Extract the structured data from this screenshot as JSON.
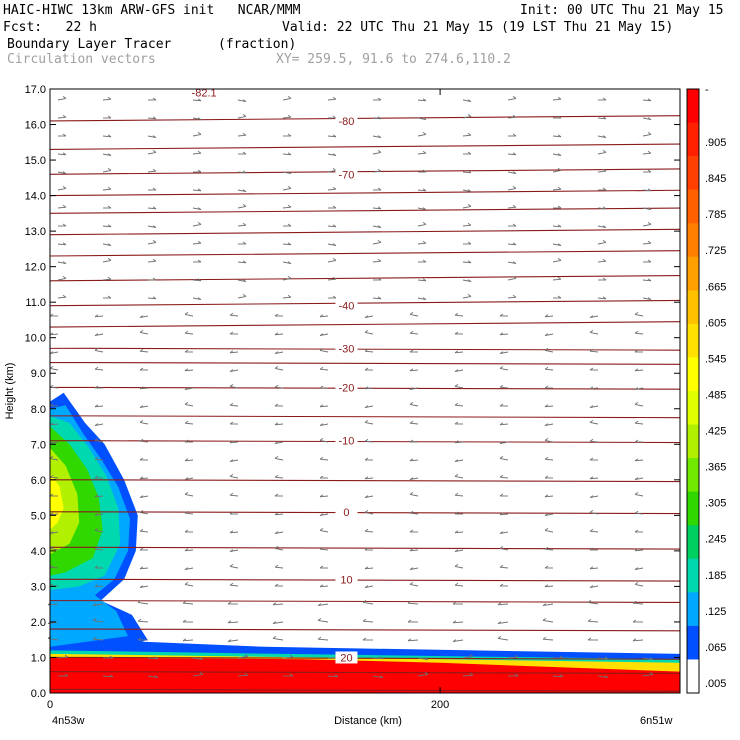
{
  "header": {
    "title": "HAIC-HIWC 13km ARW-GFS init   NCAR/MMM",
    "init": "Init: 00 UTC Thu 21 May 15",
    "fcst": "Fcst:   22 h",
    "valid": "Valid: 22 UTC Thu 21 May 15 (19 LST Thu 21 May 15)",
    "field_name": "Boundary Layer Tracer",
    "field_units": "(fraction)",
    "overlay": "Circulation vectors",
    "xy": "XY= 259.5, 91.6 to 274.6,110.2"
  },
  "chart_data": {
    "type": "heatmap",
    "xlabel": "Distance (km)",
    "ylabel": "Height (km)",
    "x_ticks": [
      "0",
      "200"
    ],
    "x_end_labels": [
      "4n53w",
      "6n51w"
    ],
    "y_ticks": [
      "0.0",
      "1.0",
      "2.0",
      "3.0",
      "4.0",
      "5.0",
      "6.0",
      "7.0",
      "8.0",
      "9.0",
      "10.0",
      "11.0",
      "12.0",
      "13.0",
      "14.0",
      "15.0",
      "16.0",
      "17.0"
    ],
    "xlim": [
      0,
      323
    ],
    "ylim": [
      0,
      17
    ],
    "colorbar_labels": [
      "-",
      ".905",
      ".845",
      ".785",
      ".725",
      ".665",
      ".605",
      ".545",
      ".485",
      ".425",
      ".365",
      ".305",
      ".245",
      ".185",
      ".125",
      ".065",
      ".005"
    ],
    "colorbar_colors": [
      "#ff0000",
      "#ff2000",
      "#ff4000",
      "#ff6000",
      "#ff8000",
      "#ffa000",
      "#ffc000",
      "#ffe000",
      "#ffff00",
      "#e0ff00",
      "#b0f000",
      "#70e800",
      "#30d800",
      "#00d060",
      "#00d8b0",
      "#00a8ff",
      "#0050ff",
      "#ffffff"
    ],
    "contour_labels": [
      {
        "label": "-82.1",
        "x": 79,
        "y": 16.9
      },
      {
        "label": "-80",
        "x": 152,
        "y": 16.1
      },
      {
        "label": "-70",
        "x": 152,
        "y": 14.6
      },
      {
        "label": "-40",
        "x": 152,
        "y": 10.9
      },
      {
        "label": "-30",
        "x": 152,
        "y": 9.7
      },
      {
        "label": "-20",
        "x": 152,
        "y": 8.6
      },
      {
        "label": "-10",
        "x": 152,
        "y": 7.1
      },
      {
        "label": "0",
        "x": 152,
        "y": 5.1
      },
      {
        "label": "10",
        "x": 152,
        "y": 3.2
      },
      {
        "label": "20",
        "x": 152,
        "y": 1.0
      }
    ],
    "isotherm_heights_km": [
      0.1,
      0.6,
      1.0,
      1.8,
      2.6,
      3.2,
      4.1,
      5.1,
      6.0,
      7.1,
      7.8,
      8.6,
      9.3,
      9.7,
      10.3,
      10.9,
      11.6,
      12.3,
      12.9,
      13.5,
      14.0,
      14.6,
      15.3,
      16.1
    ]
  },
  "colors": {
    "isotherm": "#8b1a1a",
    "vector": "#707070",
    "axis": "#000000"
  }
}
